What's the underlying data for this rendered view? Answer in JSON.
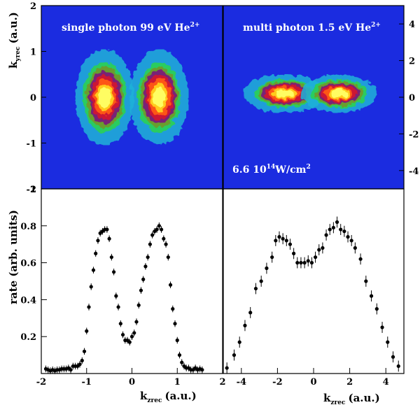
{
  "chart_data": [
    {
      "type": "heatmap",
      "panel": "top-left",
      "label": "single photon 99 eV He",
      "label_sup": "2+",
      "ylabel_main": "k",
      "ylabel_sub": "yrec",
      "ylabel_unit": "(a.u.)",
      "xlim": [
        -2,
        2
      ],
      "ylim": [
        -2,
        2
      ],
      "y_ticks": [
        "-1",
        "0",
        "1",
        "2"
      ],
      "y_tick_values": [
        -1,
        0,
        1,
        2
      ],
      "bottom_tick_label": "-2",
      "colormap": [
        "#1b2ce0",
        "#1fb2d8",
        "#2dcf58",
        "#6e9a2a",
        "#7a1a7a",
        "#d11433",
        "#ff5a14",
        "#ffd21e",
        "#ffff66"
      ],
      "background_color": "#1b2ce0",
      "lobes": [
        {
          "center_x": -0.6,
          "center_y": 0.0,
          "sigma_x": 0.34,
          "sigma_y": 0.55
        },
        {
          "center_x": 0.6,
          "center_y": 0.0,
          "sigma_x": 0.34,
          "sigma_y": 0.55
        }
      ]
    },
    {
      "type": "heatmap",
      "panel": "top-right",
      "label": "multi photon 1.5 eV He",
      "label_sup": "2+",
      "intensity_label": "6.6 10",
      "intensity_exp": "14",
      "intensity_unit": "W/cm",
      "intensity_unit_sup": "2",
      "xlim": [
        -5,
        5
      ],
      "ylim": [
        -5,
        5
      ],
      "y_ticks": [
        "4",
        "2",
        "0",
        "-2",
        "-4"
      ],
      "y_tick_values": [
        4,
        2,
        0,
        -2,
        -4
      ],
      "background_color": "#1b2ce0",
      "lobes": [
        {
          "center_x": -1.6,
          "center_y": 0.2,
          "sigma_x": 1.2,
          "sigma_y": 0.55
        },
        {
          "center_x": 1.4,
          "center_y": 0.2,
          "sigma_x": 1.1,
          "sigma_y": 0.55
        }
      ]
    },
    {
      "type": "scatter",
      "panel": "bottom-left",
      "ylabel": "rate (arb. units)",
      "xlabel_main": "k",
      "xlabel_sub": "zrec",
      "xlabel_unit": "(a.u.)",
      "xlim": [
        -2,
        2
      ],
      "ylim": [
        0,
        1.0
      ],
      "x_ticks": [
        "-2",
        "-1",
        "0",
        "1",
        "2"
      ],
      "x_tick_values": [
        -2,
        -1,
        0,
        1,
        2
      ],
      "y_ticks": [
        "0.2",
        "0.4",
        "0.6",
        "0.8",
        "1"
      ],
      "y_tick_values": [
        0.2,
        0.4,
        0.6,
        0.8,
        1.0
      ],
      "x": [
        -1.9,
        -1.85,
        -1.8,
        -1.75,
        -1.7,
        -1.65,
        -1.6,
        -1.55,
        -1.5,
        -1.45,
        -1.4,
        -1.35,
        -1.3,
        -1.25,
        -1.2,
        -1.15,
        -1.1,
        -1.05,
        -1.0,
        -0.95,
        -0.9,
        -0.85,
        -0.8,
        -0.75,
        -0.7,
        -0.65,
        -0.6,
        -0.55,
        -0.5,
        -0.45,
        -0.4,
        -0.35,
        -0.3,
        -0.25,
        -0.2,
        -0.15,
        -0.1,
        -0.05,
        0.0,
        0.05,
        0.1,
        0.15,
        0.2,
        0.25,
        0.3,
        0.35,
        0.4,
        0.45,
        0.5,
        0.55,
        0.6,
        0.65,
        0.7,
        0.75,
        0.8,
        0.85,
        0.9,
        0.95,
        1.0,
        1.05,
        1.1,
        1.15,
        1.2,
        1.25,
        1.3,
        1.35,
        1.4,
        1.45,
        1.5,
        1.55
      ],
      "y": [
        0.025,
        0.02,
        0.015,
        0.02,
        0.015,
        0.02,
        0.02,
        0.025,
        0.025,
        0.025,
        0.03,
        0.02,
        0.04,
        0.04,
        0.04,
        0.05,
        0.07,
        0.12,
        0.23,
        0.36,
        0.47,
        0.56,
        0.65,
        0.72,
        0.76,
        0.77,
        0.78,
        0.78,
        0.73,
        0.63,
        0.55,
        0.42,
        0.36,
        0.27,
        0.21,
        0.18,
        0.18,
        0.17,
        0.2,
        0.22,
        0.28,
        0.37,
        0.45,
        0.51,
        0.58,
        0.63,
        0.7,
        0.75,
        0.77,
        0.78,
        0.8,
        0.78,
        0.73,
        0.7,
        0.63,
        0.48,
        0.35,
        0.27,
        0.18,
        0.1,
        0.06,
        0.04,
        0.03,
        0.03,
        0.02,
        0.02,
        0.03,
        0.02,
        0.025,
        0.02
      ],
      "yerr": 0.018
    },
    {
      "type": "scatter",
      "panel": "bottom-right",
      "xlabel_main": "k",
      "xlabel_sub": "zrec",
      "xlabel_unit": "(a.u.)",
      "xlim": [
        -5,
        5
      ],
      "ylim": [
        0,
        1.0
      ],
      "x_ticks": [
        "-4",
        "-2",
        "0",
        "2",
        "4"
      ],
      "x_tick_values": [
        -4,
        -2,
        0,
        2,
        4
      ],
      "x": [
        -4.8,
        -4.4,
        -4.1,
        -3.8,
        -3.5,
        -3.2,
        -2.9,
        -2.6,
        -2.3,
        -2.1,
        -1.9,
        -1.7,
        -1.5,
        -1.3,
        -1.1,
        -0.9,
        -0.7,
        -0.5,
        -0.3,
        -0.1,
        0.1,
        0.3,
        0.5,
        0.7,
        0.9,
        1.1,
        1.3,
        1.5,
        1.7,
        1.9,
        2.1,
        2.3,
        2.6,
        2.9,
        3.2,
        3.5,
        3.8,
        4.1,
        4.4,
        4.7
      ],
      "y": [
        0.03,
        0.1,
        0.17,
        0.26,
        0.33,
        0.46,
        0.5,
        0.57,
        0.63,
        0.72,
        0.74,
        0.73,
        0.72,
        0.7,
        0.65,
        0.6,
        0.6,
        0.6,
        0.61,
        0.6,
        0.63,
        0.67,
        0.68,
        0.75,
        0.78,
        0.79,
        0.82,
        0.78,
        0.77,
        0.74,
        0.72,
        0.68,
        0.62,
        0.5,
        0.42,
        0.35,
        0.25,
        0.17,
        0.09,
        0.04
      ],
      "yerr": 0.03
    }
  ]
}
